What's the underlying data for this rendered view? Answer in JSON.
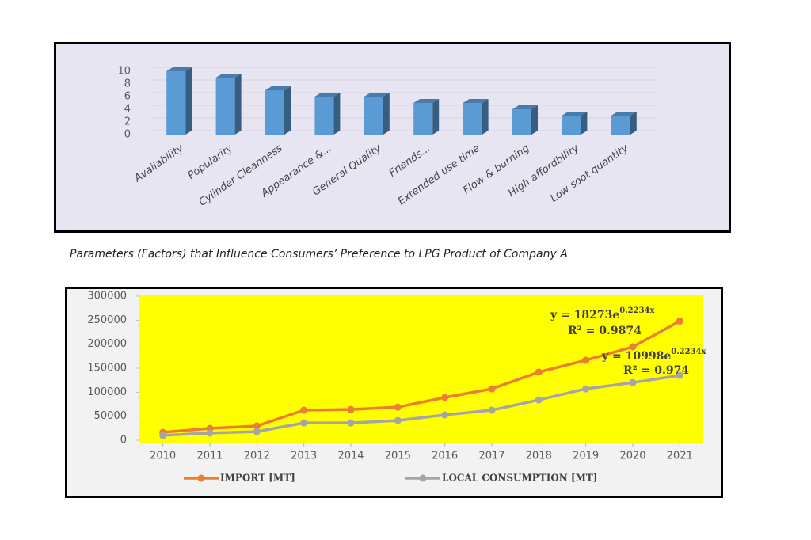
{
  "chart_data": [
    {
      "type": "bar3d",
      "categories": [
        "Availability",
        "Popularity",
        "Cylinder  Cleanness",
        "Appearance &...",
        "General Quality",
        "Friends...",
        "Extended use time",
        "Flow & burning",
        "High affordbility",
        "Low soot quantity"
      ],
      "values": [
        10,
        9,
        7,
        6,
        6,
        5,
        5,
        4,
        3,
        3
      ],
      "color": "#5b9bd5",
      "ylim": [
        0,
        10
      ],
      "yticks": [
        0,
        2,
        4,
        6,
        8,
        10
      ],
      "grid": true
    },
    {
      "type": "line",
      "x": [
        2010,
        2011,
        2012,
        2013,
        2014,
        2015,
        2016,
        2017,
        2018,
        2019,
        2020,
        2021
      ],
      "xlim": [
        2009.5,
        2021.5
      ],
      "xticks": [
        2010,
        2011,
        2012,
        2013,
        2014,
        2015,
        2016,
        2017,
        2018,
        2019,
        2020,
        2021
      ],
      "ylim": [
        0,
        300000
      ],
      "yticks": [
        0,
        50000,
        100000,
        150000,
        200000,
        250000,
        300000
      ],
      "grid": false,
      "legend": "bottom",
      "series": [
        {
          "name": "IMPORT [MT]",
          "color": "#ed7d31",
          "values": [
            16500,
            24700,
            29700,
            62600,
            64000,
            69000,
            89000,
            107000,
            141800,
            166500,
            194500,
            248000
          ]
        },
        {
          "name": "LOCAL CONSUMPTION [MT]",
          "color": "#a5a5a5",
          "values": [
            10000,
            15000,
            18000,
            36000,
            36000,
            41000,
            52700,
            62600,
            84000,
            107000,
            120000,
            135000
          ]
        }
      ],
      "annotations": [
        {
          "text": "y = 18273e",
          "exponent": "0.2234x"
        },
        {
          "text": "R² = 0.9874"
        },
        {
          "text": "y = 10998e",
          "exponent": "0.2234x"
        },
        {
          "text": "R² = 0.974"
        }
      ]
    }
  ],
  "caption": "Parameters (Factors) that Influence Consumers’ Preference to LPG Product of Company A"
}
